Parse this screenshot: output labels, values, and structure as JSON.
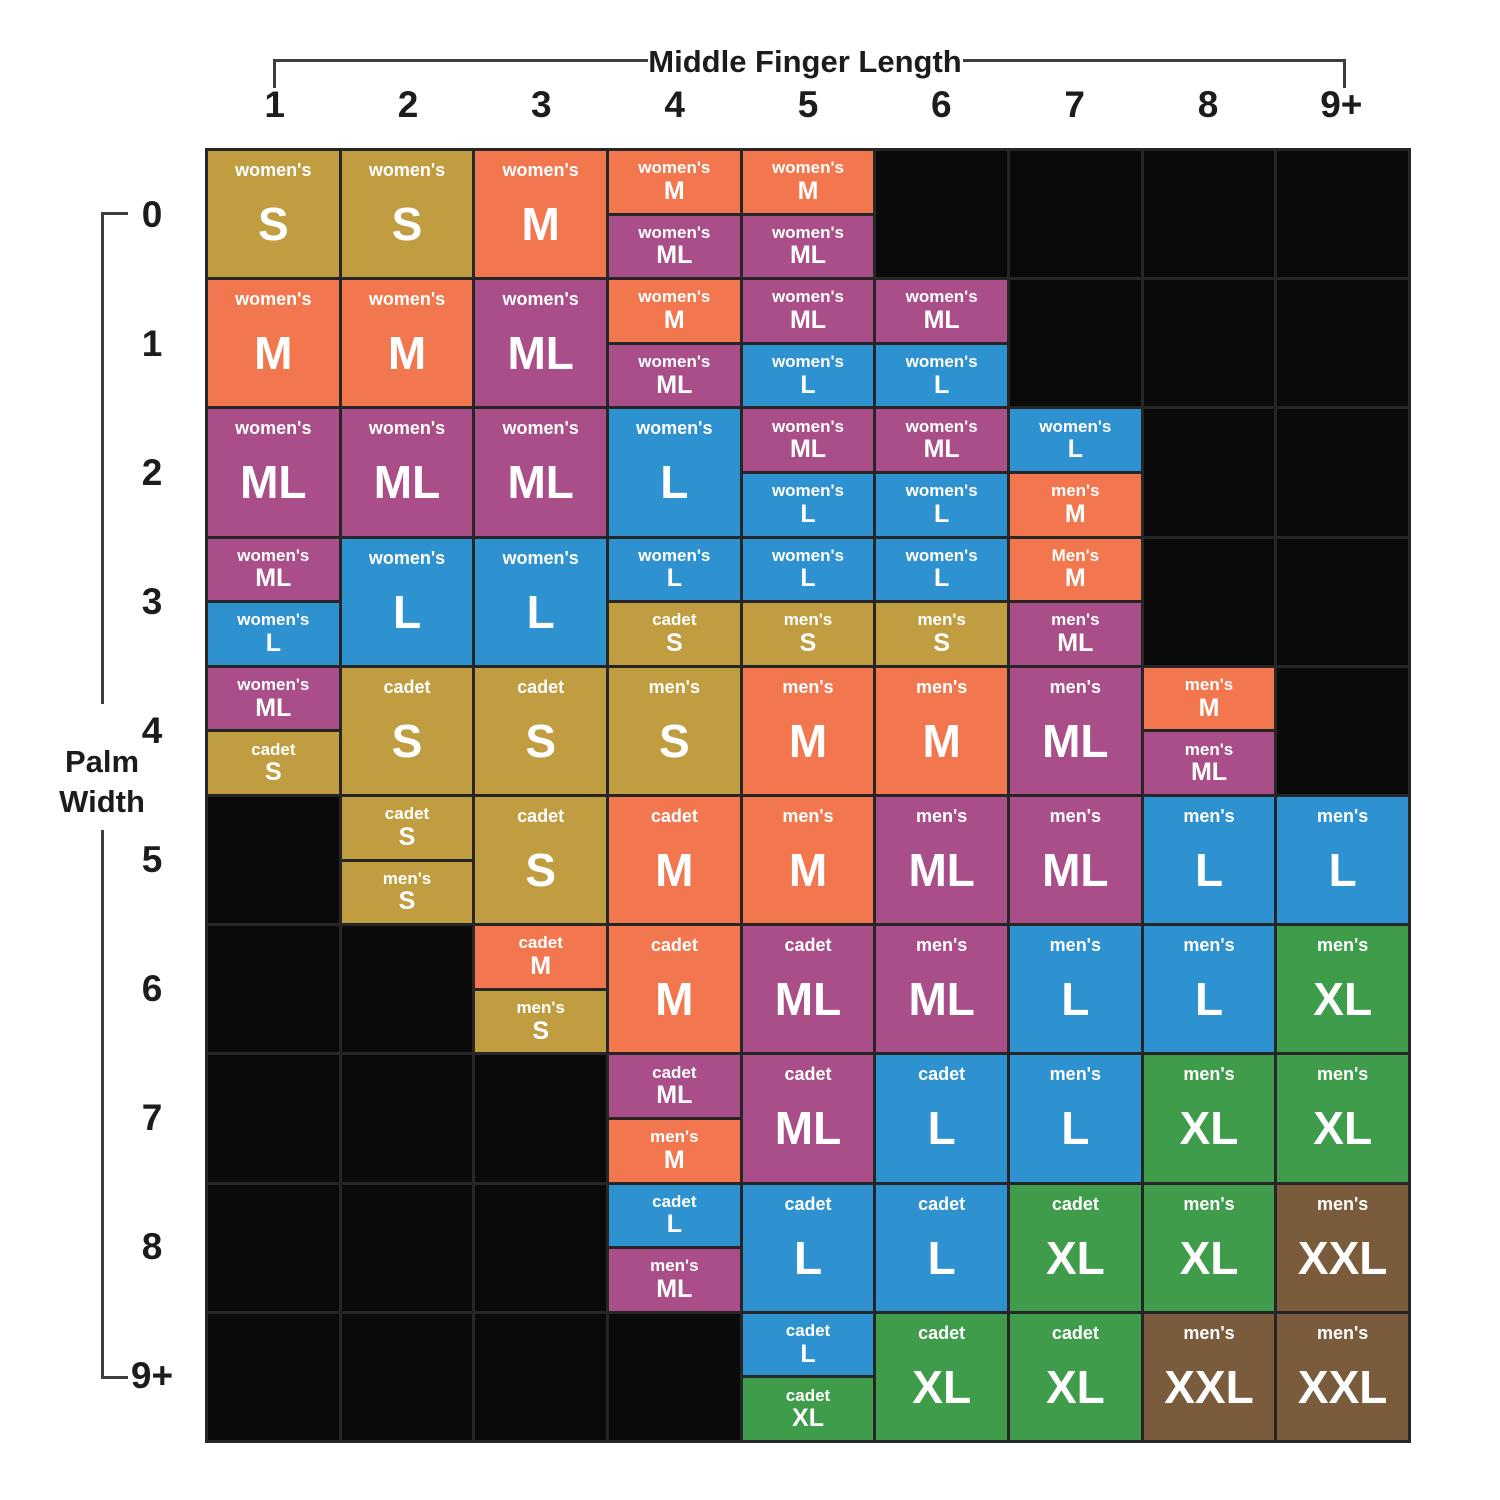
{
  "axes": {
    "x_title": "Middle Finger Length",
    "y_title": "Palm Width"
  },
  "colors": {
    "gold": "#bf9d40",
    "orange": "#f2774e",
    "purple": "#a94e88",
    "blue": "#2e91d0",
    "green": "#3f9c4a",
    "brown": "#7a5c3c",
    "empty": "#0a0a0a"
  },
  "chart_data": {
    "type": "heatmap",
    "xlabel": "Middle Finger Length",
    "ylabel": "Palm Width",
    "x_ticks": [
      "1",
      "2",
      "3",
      "4",
      "5",
      "6",
      "7",
      "8",
      "9+"
    ],
    "y_ticks": [
      "0",
      "1",
      "2",
      "3",
      "4",
      "5",
      "6",
      "7",
      "8",
      "9+"
    ],
    "cells": [
      [
        {
          "brand": "women's",
          "size": "S",
          "color": "gold"
        },
        {
          "brand": "women's",
          "size": "S",
          "color": "gold"
        },
        {
          "brand": "women's",
          "size": "M",
          "color": "orange"
        },
        {
          "split": [
            {
              "brand": "women's",
              "size": "M",
              "color": "orange"
            },
            {
              "brand": "women's",
              "size": "ML",
              "color": "purple"
            }
          ]
        },
        {
          "split": [
            {
              "brand": "women's",
              "size": "M",
              "color": "orange"
            },
            {
              "brand": "women's",
              "size": "ML",
              "color": "purple"
            }
          ]
        },
        null,
        null,
        null,
        null
      ],
      [
        {
          "brand": "women's",
          "size": "M",
          "color": "orange"
        },
        {
          "brand": "women's",
          "size": "M",
          "color": "orange"
        },
        {
          "brand": "women's",
          "size": "ML",
          "color": "purple"
        },
        {
          "split": [
            {
              "brand": "women's",
              "size": "M",
              "color": "orange"
            },
            {
              "brand": "women's",
              "size": "ML",
              "color": "purple"
            }
          ]
        },
        {
          "split": [
            {
              "brand": "women's",
              "size": "ML",
              "color": "purple"
            },
            {
              "brand": "women's",
              "size": "L",
              "color": "blue"
            }
          ]
        },
        {
          "split": [
            {
              "brand": "women's",
              "size": "ML",
              "color": "purple"
            },
            {
              "brand": "women's",
              "size": "L",
              "color": "blue"
            }
          ]
        },
        null,
        null,
        null
      ],
      [
        {
          "brand": "women's",
          "size": "ML",
          "color": "purple"
        },
        {
          "brand": "women's",
          "size": "ML",
          "color": "purple"
        },
        {
          "brand": "women's",
          "size": "ML",
          "color": "purple"
        },
        {
          "brand": "women's",
          "size": "L",
          "color": "blue"
        },
        {
          "split": [
            {
              "brand": "women's",
              "size": "ML",
              "color": "purple"
            },
            {
              "brand": "women's",
              "size": "L",
              "color": "blue"
            }
          ]
        },
        {
          "split": [
            {
              "brand": "women's",
              "size": "ML",
              "color": "purple"
            },
            {
              "brand": "women's",
              "size": "L",
              "color": "blue"
            }
          ]
        },
        {
          "split": [
            {
              "brand": "women's",
              "size": "L",
              "color": "blue"
            },
            {
              "brand": "men's",
              "size": "M",
              "color": "orange"
            }
          ]
        },
        null,
        null
      ],
      [
        {
          "split": [
            {
              "brand": "women's",
              "size": "ML",
              "color": "purple"
            },
            {
              "brand": "women's",
              "size": "L",
              "color": "blue"
            }
          ]
        },
        {
          "brand": "women's",
          "size": "L",
          "color": "blue"
        },
        {
          "brand": "women's",
          "size": "L",
          "color": "blue"
        },
        {
          "split": [
            {
              "brand": "women's",
              "size": "L",
              "color": "blue"
            },
            {
              "brand": "cadet",
              "size": "S",
              "color": "gold"
            }
          ]
        },
        {
          "split": [
            {
              "brand": "women's",
              "size": "L",
              "color": "blue"
            },
            {
              "brand": "men's",
              "size": "S",
              "color": "gold"
            }
          ]
        },
        {
          "split": [
            {
              "brand": "women's",
              "size": "L",
              "color": "blue"
            },
            {
              "brand": "men's",
              "size": "S",
              "color": "gold"
            }
          ]
        },
        {
          "split": [
            {
              "brand": "Men's",
              "size": "M",
              "color": "orange"
            },
            {
              "brand": "men's",
              "size": "ML",
              "color": "purple"
            }
          ]
        },
        null,
        null
      ],
      [
        {
          "split": [
            {
              "brand": "women's",
              "size": "ML",
              "color": "purple"
            },
            {
              "brand": "cadet",
              "size": "S",
              "color": "gold"
            }
          ]
        },
        {
          "brand": "cadet",
          "size": "S",
          "color": "gold"
        },
        {
          "brand": "cadet",
          "size": "S",
          "color": "gold"
        },
        {
          "brand": "men's",
          "size": "S",
          "color": "gold"
        },
        {
          "brand": "men's",
          "size": "M",
          "color": "orange"
        },
        {
          "brand": "men's",
          "size": "M",
          "color": "orange"
        },
        {
          "brand": "men's",
          "size": "ML",
          "color": "purple"
        },
        {
          "split": [
            {
              "brand": "men's",
              "size": "M",
              "color": "orange"
            },
            {
              "brand": "men's",
              "size": "ML",
              "color": "purple"
            }
          ]
        },
        null
      ],
      [
        null,
        {
          "split": [
            {
              "brand": "cadet",
              "size": "S",
              "color": "gold"
            },
            {
              "brand": "men's",
              "size": "S",
              "color": "gold"
            }
          ]
        },
        {
          "brand": "cadet",
          "size": "S",
          "color": "gold"
        },
        {
          "brand": "cadet",
          "size": "M",
          "color": "orange"
        },
        {
          "brand": "men's",
          "size": "M",
          "color": "orange"
        },
        {
          "brand": "men's",
          "size": "ML",
          "color": "purple"
        },
        {
          "brand": "men's",
          "size": "ML",
          "color": "purple"
        },
        {
          "brand": "men's",
          "size": "L",
          "color": "blue"
        },
        {
          "brand": "men's",
          "size": "L",
          "color": "blue"
        }
      ],
      [
        null,
        null,
        {
          "split": [
            {
              "brand": "cadet",
              "size": "M",
              "color": "orange"
            },
            {
              "brand": "men's",
              "size": "S",
              "color": "gold"
            }
          ]
        },
        {
          "brand": "cadet",
          "size": "M",
          "color": "orange"
        },
        {
          "brand": "cadet",
          "size": "ML",
          "color": "purple"
        },
        {
          "brand": "men's",
          "size": "ML",
          "color": "purple"
        },
        {
          "brand": "men's",
          "size": "L",
          "color": "blue"
        },
        {
          "brand": "men's",
          "size": "L",
          "color": "blue"
        },
        {
          "brand": "men's",
          "size": "XL",
          "color": "green"
        }
      ],
      [
        null,
        null,
        null,
        {
          "split": [
            {
              "brand": "cadet",
              "size": "ML",
              "color": "purple"
            },
            {
              "brand": "men's",
              "size": "M",
              "color": "orange"
            }
          ]
        },
        {
          "brand": "cadet",
          "size": "ML",
          "color": "purple"
        },
        {
          "brand": "cadet",
          "size": "L",
          "color": "blue"
        },
        {
          "brand": "men's",
          "size": "L",
          "color": "blue"
        },
        {
          "brand": "men's",
          "size": "XL",
          "color": "green"
        },
        {
          "brand": "men's",
          "size": "XL",
          "color": "green"
        }
      ],
      [
        null,
        null,
        null,
        {
          "split": [
            {
              "brand": "cadet",
              "size": "L",
              "color": "blue"
            },
            {
              "brand": "men's",
              "size": "ML",
              "color": "purple"
            }
          ]
        },
        {
          "brand": "cadet",
          "size": "L",
          "color": "blue"
        },
        {
          "brand": "cadet",
          "size": "L",
          "color": "blue"
        },
        {
          "brand": "cadet",
          "size": "XL",
          "color": "green"
        },
        {
          "brand": "men's",
          "size": "XL",
          "color": "green"
        },
        {
          "brand": "men's",
          "size": "XXL",
          "color": "brown"
        }
      ],
      [
        null,
        null,
        null,
        null,
        {
          "split": [
            {
              "brand": "cadet",
              "size": "L",
              "color": "blue"
            },
            {
              "brand": "cadet",
              "size": "XL",
              "color": "green"
            }
          ]
        },
        {
          "brand": "cadet",
          "size": "XL",
          "color": "green"
        },
        {
          "brand": "cadet",
          "size": "XL",
          "color": "green"
        },
        {
          "brand": "men's",
          "size": "XXL",
          "color": "brown"
        },
        {
          "brand": "men's",
          "size": "XXL",
          "color": "brown"
        }
      ]
    ]
  }
}
